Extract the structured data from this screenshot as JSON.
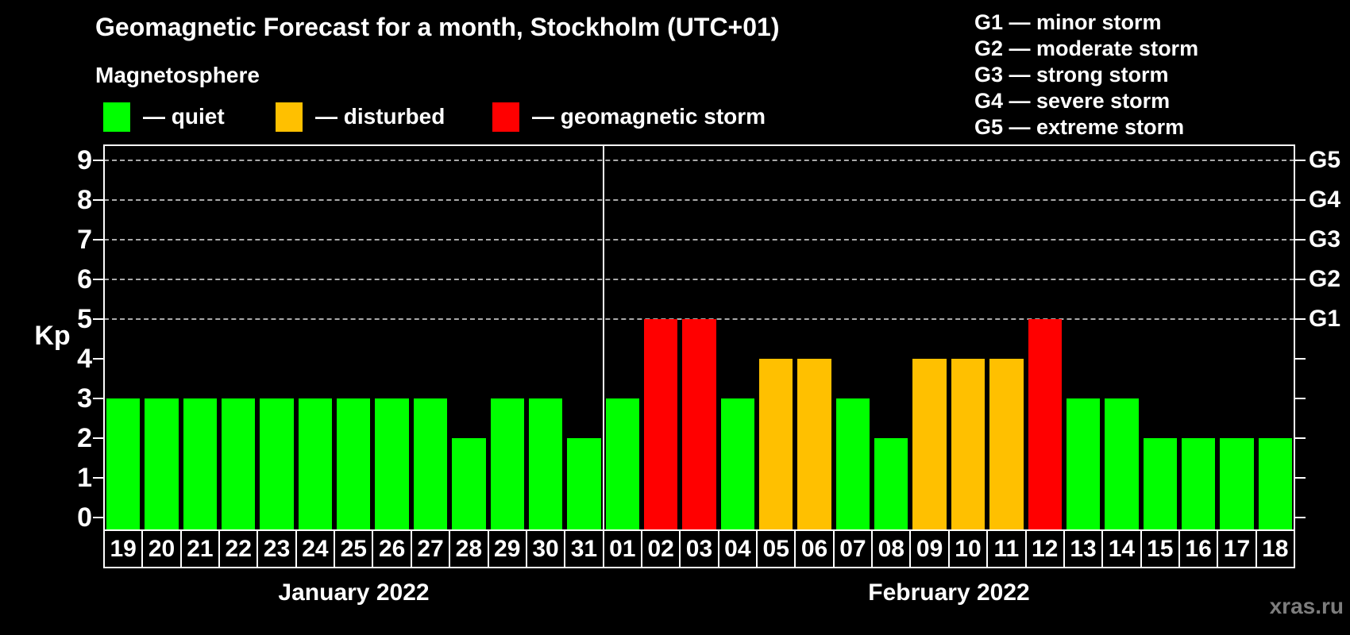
{
  "title": "Geomagnetic Forecast for a month, Stockholm (UTC+01)",
  "subtitle": "Magnetosphere",
  "watermark": "xras.ru",
  "colors": {
    "quiet": "#00FF00",
    "disturbed": "#FFC000",
    "storm": "#FF0000",
    "axis": "#FFFFFF",
    "grid": "#AAAAAA",
    "background": "#000000",
    "watermark_text": "#7D7D7D"
  },
  "legend": [
    {
      "label": "— quiet",
      "status": "quiet"
    },
    {
      "label": "— disturbed",
      "status": "disturbed"
    },
    {
      "label": "— geomagnetic storm",
      "status": "storm"
    }
  ],
  "storm_scale": [
    {
      "label": "G1 — minor storm"
    },
    {
      "label": "G2 — moderate storm"
    },
    {
      "label": "G3 — strong storm"
    },
    {
      "label": "G4 — severe storm"
    },
    {
      "label": "G5 — extreme storm"
    }
  ],
  "chart_data": {
    "type": "bar",
    "ylabel": "Kp",
    "ylim": [
      0,
      9
    ],
    "y_ticks": [
      0,
      1,
      2,
      3,
      4,
      5,
      6,
      7,
      8,
      9
    ],
    "grid_kp_levels": [
      5,
      6,
      7,
      8,
      9
    ],
    "right_axis": [
      {
        "label": "G1",
        "kp": 5
      },
      {
        "label": "G2",
        "kp": 6
      },
      {
        "label": "G3",
        "kp": 7
      },
      {
        "label": "G4",
        "kp": 8
      },
      {
        "label": "G5",
        "kp": 9
      }
    ],
    "legend_position": "top-left",
    "grid": "dashed horizontal at G-levels only",
    "months": [
      {
        "label": "January 2022",
        "days": [
          {
            "day": "19",
            "kp": 3,
            "status": "quiet"
          },
          {
            "day": "20",
            "kp": 3,
            "status": "quiet"
          },
          {
            "day": "21",
            "kp": 3,
            "status": "quiet"
          },
          {
            "day": "22",
            "kp": 3,
            "status": "quiet"
          },
          {
            "day": "23",
            "kp": 3,
            "status": "quiet"
          },
          {
            "day": "24",
            "kp": 3,
            "status": "quiet"
          },
          {
            "day": "25",
            "kp": 3,
            "status": "quiet"
          },
          {
            "day": "26",
            "kp": 3,
            "status": "quiet"
          },
          {
            "day": "27",
            "kp": 3,
            "status": "quiet"
          },
          {
            "day": "28",
            "kp": 2,
            "status": "quiet"
          },
          {
            "day": "29",
            "kp": 3,
            "status": "quiet"
          },
          {
            "day": "30",
            "kp": 3,
            "status": "quiet"
          },
          {
            "day": "31",
            "kp": 2,
            "status": "quiet"
          }
        ]
      },
      {
        "label": "February 2022",
        "days": [
          {
            "day": "01",
            "kp": 3,
            "status": "quiet"
          },
          {
            "day": "02",
            "kp": 5,
            "status": "storm"
          },
          {
            "day": "03",
            "kp": 5,
            "status": "storm"
          },
          {
            "day": "04",
            "kp": 3,
            "status": "quiet"
          },
          {
            "day": "05",
            "kp": 4,
            "status": "disturbed"
          },
          {
            "day": "06",
            "kp": 4,
            "status": "disturbed"
          },
          {
            "day": "07",
            "kp": 3,
            "status": "quiet"
          },
          {
            "day": "08",
            "kp": 2,
            "status": "quiet"
          },
          {
            "day": "09",
            "kp": 4,
            "status": "disturbed"
          },
          {
            "day": "10",
            "kp": 4,
            "status": "disturbed"
          },
          {
            "day": "11",
            "kp": 4,
            "status": "disturbed"
          },
          {
            "day": "12",
            "kp": 5,
            "status": "storm"
          },
          {
            "day": "13",
            "kp": 3,
            "status": "quiet"
          },
          {
            "day": "14",
            "kp": 3,
            "status": "quiet"
          },
          {
            "day": "15",
            "kp": 2,
            "status": "quiet"
          },
          {
            "day": "16",
            "kp": 2,
            "status": "quiet"
          },
          {
            "day": "17",
            "kp": 2,
            "status": "quiet"
          },
          {
            "day": "18",
            "kp": 2,
            "status": "quiet"
          }
        ]
      }
    ]
  }
}
